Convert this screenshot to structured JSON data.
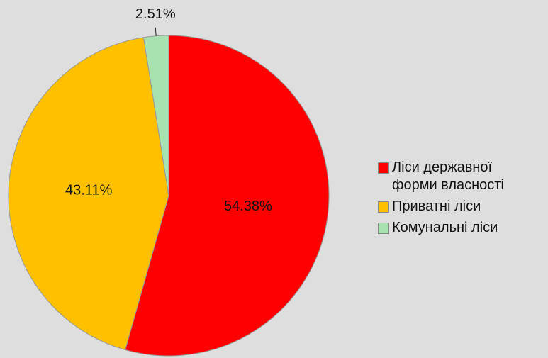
{
  "chart_data": {
    "type": "pie",
    "categories": [
      "Ліси державної форми власності",
      "Приватні ліси",
      "Комунальні ліси"
    ],
    "values": [
      54.38,
      43.11,
      2.51
    ],
    "value_labels": [
      "54.38%",
      "43.11%",
      "2.51%"
    ],
    "colors": [
      "#ff0000",
      "#ffc000",
      "#a8e2b0"
    ],
    "legend": "right"
  }
}
